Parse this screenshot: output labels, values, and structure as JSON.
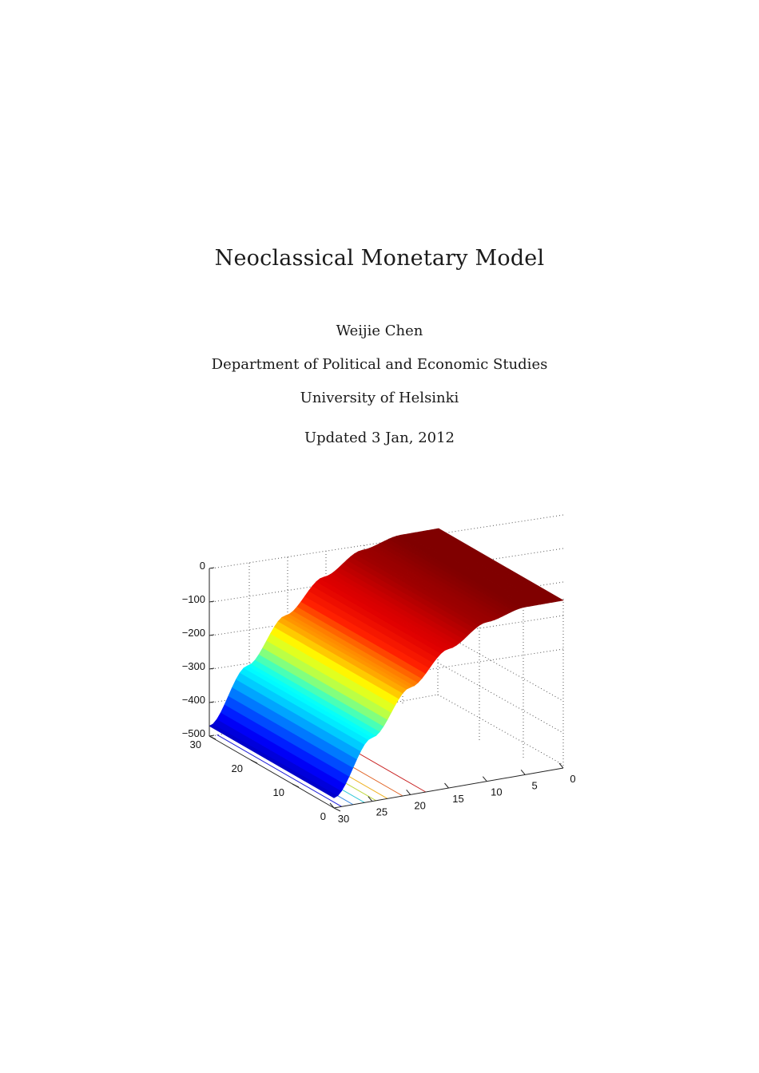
{
  "document": {
    "title": "Neoclassical Monetary Model",
    "author": "Weijie Chen",
    "department": "Department of Political and Economic Studies",
    "university": "University of Helsinki",
    "date": "Updated 3 Jan, 2012"
  },
  "chart_data": {
    "type": "surface",
    "title": "",
    "xlabel": "",
    "ylabel": "",
    "zlabel": "",
    "colormap": "jet",
    "grid": true,
    "x_axis": {
      "range": [
        0,
        30
      ],
      "ticks": [
        "0",
        "10",
        "20",
        "30"
      ]
    },
    "y_axis": {
      "range": [
        0,
        30
      ],
      "ticks": [
        "0",
        "5",
        "10",
        "15",
        "20",
        "25",
        "30"
      ]
    },
    "z_axis": {
      "range": [
        -500,
        0
      ],
      "ticks": [
        "0",
        "−100",
        "−200",
        "−300",
        "−400",
        "−500"
      ]
    },
    "surface_profile": {
      "y": [
        30,
        25,
        20,
        15,
        10,
        5,
        0
      ],
      "z": [
        -470,
        -310,
        -180,
        -85,
        -25,
        0,
        0
      ]
    },
    "contour_colors": [
      "#1a1ad8",
      "#3a8ae0",
      "#30c8d8",
      "#c0d840",
      "#f0b020",
      "#e06020",
      "#c82020"
    ]
  }
}
